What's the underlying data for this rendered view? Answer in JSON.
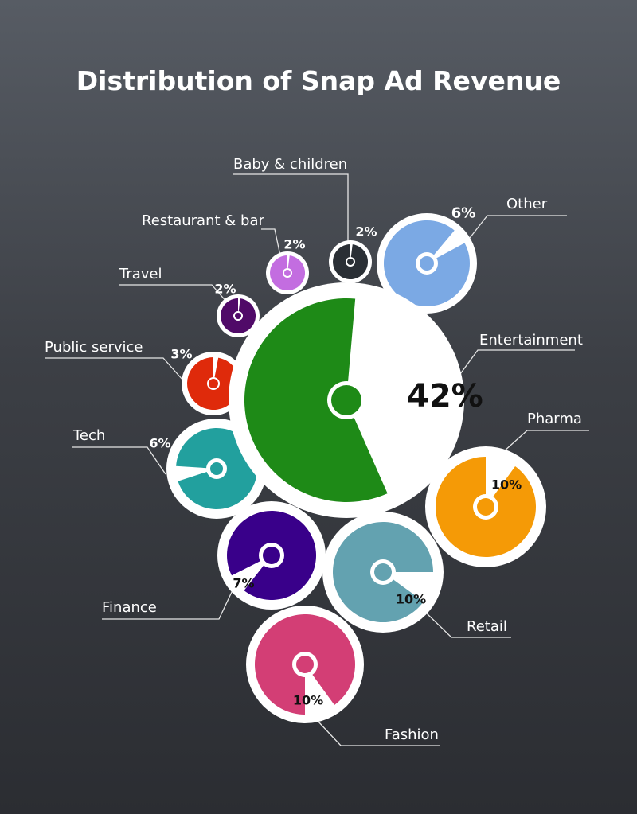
{
  "chart_data": {
    "type": "pie",
    "title": "Distribution of Snap Ad Revenue",
    "center_label": "42%",
    "slices": [
      {
        "label": "Entertainment",
        "value": 42,
        "value_label": "42%",
        "color": "#1e8a17"
      },
      {
        "label": "Pharma",
        "value": 10,
        "value_label": "10%",
        "color": "#f59a06"
      },
      {
        "label": "Retail",
        "value": 10,
        "value_label": "10%",
        "color": "#63a2b0"
      },
      {
        "label": "Fashion",
        "value": 10,
        "value_label": "10%",
        "color": "#d33e75"
      },
      {
        "label": "Finance",
        "value": 7,
        "value_label": "7%",
        "color": "#39008a"
      },
      {
        "label": "Tech",
        "value": 6,
        "value_label": "6%",
        "color": "#22a09e"
      },
      {
        "label": "Other",
        "value": 6,
        "value_label": "6%",
        "color": "#7ba9e4"
      },
      {
        "label": "Public service",
        "value": 3,
        "value_label": "3%",
        "color": "#df2a0b"
      },
      {
        "label": "Travel",
        "value": 2,
        "value_label": "2%",
        "color": "#500a68"
      },
      {
        "label": "Restaurant & bar",
        "value": 2,
        "value_label": "2%",
        "color": "#c36de0"
      },
      {
        "label": "Baby & children",
        "value": 2,
        "value_label": "2%",
        "color": "#2a2f35"
      }
    ],
    "legend": "none",
    "grid": false
  }
}
